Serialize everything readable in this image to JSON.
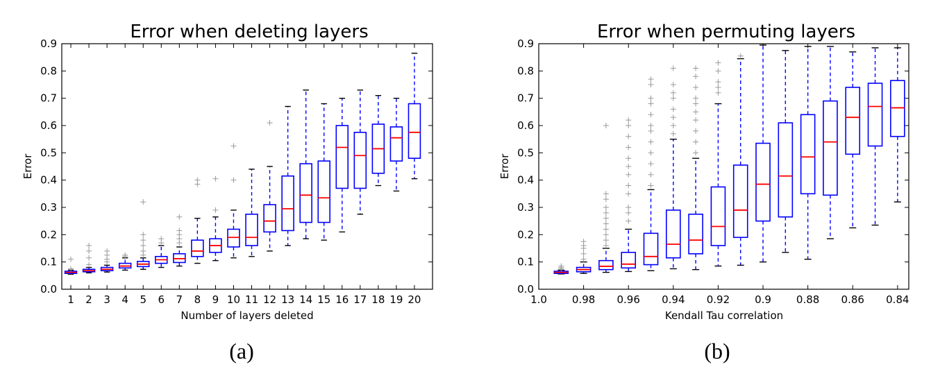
{
  "chart_data": [
    {
      "type": "box",
      "title": "Error when deleting layers",
      "xlabel": "Number of layers deleted",
      "ylabel": "Error",
      "panel_label": "(a)",
      "ylim": [
        0.0,
        0.9
      ],
      "yticks": [
        "0.0",
        "0.1",
        "0.2",
        "0.3",
        "0.4",
        "0.5",
        "0.6",
        "0.7",
        "0.8",
        "0.9"
      ],
      "xticks": [
        "1",
        "2",
        "3",
        "4",
        "5",
        "6",
        "7",
        "8",
        "9",
        "10",
        "11",
        "12",
        "13",
        "14",
        "15",
        "16",
        "17",
        "18",
        "19",
        "20"
      ],
      "colors": {
        "box": "#0000ff",
        "median": "#ff0000",
        "outlier": "#999999"
      },
      "boxes": [
        {
          "x": "1",
          "min": 0.055,
          "q1": 0.058,
          "median": 0.062,
          "q3": 0.066,
          "max": 0.07,
          "outliers": [
            0.075,
            0.11
          ]
        },
        {
          "x": "2",
          "min": 0.06,
          "q1": 0.064,
          "median": 0.068,
          "q3": 0.073,
          "max": 0.08,
          "outliers": [
            0.09,
            0.115,
            0.14,
            0.16
          ]
        },
        {
          "x": "3",
          "min": 0.063,
          "q1": 0.068,
          "median": 0.073,
          "q3": 0.08,
          "max": 0.088,
          "outliers": [
            0.1,
            0.11,
            0.125,
            0.14
          ]
        },
        {
          "x": "4",
          "min": 0.07,
          "q1": 0.078,
          "median": 0.085,
          "q3": 0.095,
          "max": 0.115,
          "outliers": [
            0.12,
            0.125
          ]
        },
        {
          "x": "5",
          "min": 0.073,
          "q1": 0.083,
          "median": 0.092,
          "q3": 0.102,
          "max": 0.115,
          "outliers": [
            0.125,
            0.14,
            0.16,
            0.18,
            0.2,
            0.32
          ]
        },
        {
          "x": "6",
          "min": 0.08,
          "q1": 0.095,
          "median": 0.108,
          "q3": 0.12,
          "max": 0.16,
          "outliers": [
            0.17,
            0.185
          ]
        },
        {
          "x": "7",
          "min": 0.085,
          "q1": 0.098,
          "median": 0.112,
          "q3": 0.13,
          "max": 0.155,
          "outliers": [
            0.17,
            0.185,
            0.2,
            0.215,
            0.265
          ]
        },
        {
          "x": "8",
          "min": 0.095,
          "q1": 0.12,
          "median": 0.14,
          "q3": 0.18,
          "max": 0.26,
          "outliers": [
            0.385,
            0.4
          ]
        },
        {
          "x": "9",
          "min": 0.105,
          "q1": 0.135,
          "median": 0.16,
          "q3": 0.185,
          "max": 0.265,
          "outliers": [
            0.29,
            0.405
          ]
        },
        {
          "x": "10",
          "min": 0.115,
          "q1": 0.155,
          "median": 0.19,
          "q3": 0.22,
          "max": 0.29,
          "outliers": [
            0.4,
            0.525
          ]
        },
        {
          "x": "11",
          "min": 0.12,
          "q1": 0.16,
          "median": 0.19,
          "q3": 0.275,
          "max": 0.44,
          "outliers": []
        },
        {
          "x": "12",
          "min": 0.14,
          "q1": 0.21,
          "median": 0.25,
          "q3": 0.31,
          "max": 0.45,
          "outliers": [
            0.61
          ]
        },
        {
          "x": "13",
          "min": 0.16,
          "q1": 0.215,
          "median": 0.295,
          "q3": 0.415,
          "max": 0.67,
          "outliers": []
        },
        {
          "x": "14",
          "min": 0.185,
          "q1": 0.245,
          "median": 0.345,
          "q3": 0.46,
          "max": 0.73,
          "outliers": []
        },
        {
          "x": "15",
          "min": 0.18,
          "q1": 0.245,
          "median": 0.335,
          "q3": 0.47,
          "max": 0.68,
          "outliers": []
        },
        {
          "x": "16",
          "min": 0.21,
          "q1": 0.37,
          "median": 0.52,
          "q3": 0.6,
          "max": 0.7,
          "outliers": []
        },
        {
          "x": "17",
          "min": 0.275,
          "q1": 0.37,
          "median": 0.49,
          "q3": 0.575,
          "max": 0.73,
          "outliers": []
        },
        {
          "x": "18",
          "min": 0.38,
          "q1": 0.425,
          "median": 0.515,
          "q3": 0.605,
          "max": 0.71,
          "outliers": []
        },
        {
          "x": "19",
          "min": 0.36,
          "q1": 0.47,
          "median": 0.555,
          "q3": 0.595,
          "max": 0.7,
          "outliers": []
        },
        {
          "x": "20",
          "min": 0.405,
          "q1": 0.48,
          "median": 0.575,
          "q3": 0.68,
          "max": 0.865,
          "outliers": []
        }
      ]
    },
    {
      "type": "box",
      "title": "Error when permuting layers",
      "xlabel": "Kendall Tau correlation",
      "ylabel": "Error",
      "panel_label": "(b)",
      "ylim": [
        0.0,
        0.9
      ],
      "xlim": [
        1.0,
        0.835
      ],
      "yticks": [
        "0.0",
        "0.1",
        "0.2",
        "0.3",
        "0.4",
        "0.5",
        "0.6",
        "0.7",
        "0.8",
        "0.9"
      ],
      "xtick_labels": [
        "1.0",
        "0.98",
        "0.96",
        "0.94",
        "0.92",
        "0.9",
        "0.88",
        "0.86",
        "0.84"
      ],
      "xtick_values": [
        1.0,
        0.98,
        0.96,
        0.94,
        0.92,
        0.9,
        0.88,
        0.86,
        0.84
      ],
      "colors": {
        "box": "#0000ff",
        "median": "#ff0000",
        "outlier": "#999999"
      },
      "boxes": [
        {
          "x": 0.99,
          "min": 0.056,
          "q1": 0.058,
          "median": 0.062,
          "q3": 0.066,
          "max": 0.07,
          "outliers": [
            0.075,
            0.08,
            0.085
          ]
        },
        {
          "x": 0.98,
          "min": 0.058,
          "q1": 0.064,
          "median": 0.072,
          "q3": 0.08,
          "max": 0.1,
          "outliers": [
            0.11,
            0.13,
            0.15,
            0.16,
            0.175
          ]
        },
        {
          "x": 0.97,
          "min": 0.062,
          "q1": 0.072,
          "median": 0.084,
          "q3": 0.105,
          "max": 0.15,
          "outliers": [
            0.16,
            0.18,
            0.2,
            0.22,
            0.24,
            0.26,
            0.28,
            0.3,
            0.33,
            0.35,
            0.6
          ]
        },
        {
          "x": 0.96,
          "min": 0.065,
          "q1": 0.078,
          "median": 0.092,
          "q3": 0.135,
          "max": 0.22,
          "outliers": [
            0.25,
            0.28,
            0.3,
            0.35,
            0.38,
            0.42,
            0.45,
            0.48,
            0.52,
            0.56,
            0.6,
            0.62
          ]
        },
        {
          "x": 0.95,
          "min": 0.068,
          "q1": 0.09,
          "median": 0.12,
          "q3": 0.205,
          "max": 0.365,
          "outliers": [
            0.38,
            0.42,
            0.46,
            0.5,
            0.54,
            0.58,
            0.6,
            0.64,
            0.68,
            0.7,
            0.75,
            0.77
          ]
        },
        {
          "x": 0.94,
          "min": 0.075,
          "q1": 0.115,
          "median": 0.165,
          "q3": 0.29,
          "max": 0.55,
          "outliers": [
            0.57,
            0.6,
            0.63,
            0.66,
            0.7,
            0.72,
            0.75,
            0.81
          ]
        },
        {
          "x": 0.93,
          "min": 0.072,
          "q1": 0.13,
          "median": 0.18,
          "q3": 0.275,
          "max": 0.48,
          "outliers": [
            0.5,
            0.54,
            0.58,
            0.62,
            0.65,
            0.68,
            0.7,
            0.74,
            0.78,
            0.81
          ]
        },
        {
          "x": 0.92,
          "min": 0.085,
          "q1": 0.16,
          "median": 0.23,
          "q3": 0.375,
          "max": 0.68,
          "outliers": [
            0.72,
            0.74,
            0.76,
            0.8,
            0.83
          ]
        },
        {
          "x": 0.91,
          "min": 0.088,
          "q1": 0.19,
          "median": 0.29,
          "q3": 0.455,
          "max": 0.845,
          "outliers": [
            0.855
          ]
        },
        {
          "x": 0.9,
          "min": 0.1,
          "q1": 0.25,
          "median": 0.385,
          "q3": 0.535,
          "max": 0.895,
          "outliers": []
        },
        {
          "x": 0.89,
          "min": 0.135,
          "q1": 0.265,
          "median": 0.415,
          "q3": 0.61,
          "max": 0.875,
          "outliers": []
        },
        {
          "x": 0.88,
          "min": 0.11,
          "q1": 0.35,
          "median": 0.485,
          "q3": 0.64,
          "max": 0.89,
          "outliers": []
        },
        {
          "x": 0.87,
          "min": 0.185,
          "q1": 0.345,
          "median": 0.54,
          "q3": 0.69,
          "max": 0.89,
          "outliers": []
        },
        {
          "x": 0.86,
          "min": 0.225,
          "q1": 0.495,
          "median": 0.63,
          "q3": 0.74,
          "max": 0.87,
          "outliers": []
        },
        {
          "x": 0.85,
          "min": 0.235,
          "q1": 0.525,
          "median": 0.67,
          "q3": 0.755,
          "max": 0.885,
          "outliers": []
        },
        {
          "x": 0.84,
          "min": 0.32,
          "q1": 0.56,
          "median": 0.665,
          "q3": 0.765,
          "max": 0.885,
          "outliers": []
        }
      ]
    }
  ]
}
